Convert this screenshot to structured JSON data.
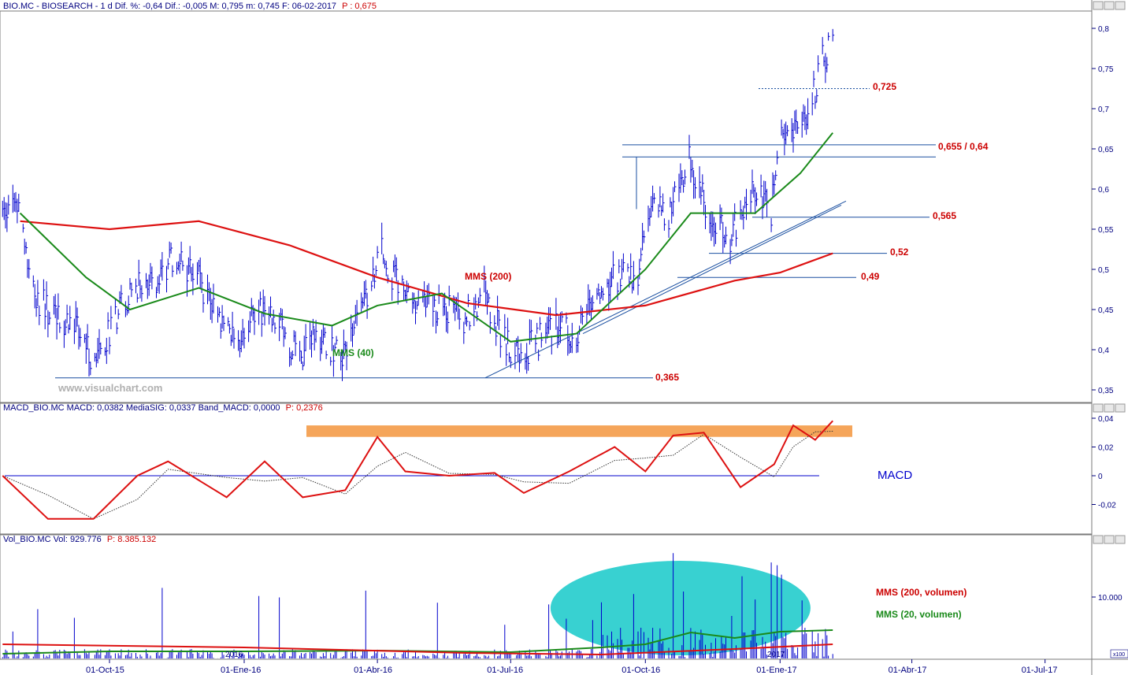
{
  "colors": {
    "price_bars": "#0000cc",
    "sma200": "#dd1111",
    "sma40": "#1a8a1a",
    "support_lines": "#1a4fa0",
    "macd_line": "#dd1111",
    "signal_line": "#333333",
    "macd_band": "#f5a55a",
    "volume_bars": "#0000cc",
    "volume_ellipse": "#22cccc",
    "labels_red": "#cc0000",
    "labels_green": "#1a8a1a",
    "axis_text": "#000080"
  },
  "header": {
    "price": {
      "prefix": "BIO.MC - BIOSEARCH - 1 d Dif. %: -0,64 Dif.: -0,005 M: 0,795 m: 0,745 F: 06-02-2017",
      "p_label": "P : 0,675"
    },
    "macd": {
      "prefix": "MACD_BIO.MC MACD: 0,0382 MediaSIG: 0,0337 Band_MACD: 0,0000",
      "p_label": "P: 0,2376"
    },
    "volume": {
      "prefix": "Vol_BIO.MC Vol: 929.776",
      "p_label": "P: 8.385.132"
    }
  },
  "watermark": "www.visualchart.com",
  "annotations": {
    "sma200": "MMS (200)",
    "sma40": "MMS (40)",
    "l_0725": "0,725",
    "l_0655": "0,655 / 0,64",
    "l_0565": "0,565",
    "l_052": "0,52",
    "l_049": "0,49",
    "l_0365": "0,365",
    "macd_title": "MACD",
    "vol200": "MMS (200, volumen)",
    "vol20": "MMS (20, volumen)",
    "year_2016": "2016",
    "year_2017": "2017",
    "x100": "x100"
  },
  "chart_data": [
    {
      "type": "line",
      "title": "BIO.MC - BIOSEARCH - 1 d",
      "ylim": [
        0.34,
        0.81
      ],
      "y_ticks": [
        "0,8",
        "0,75",
        "0,7",
        "0,65",
        "0,6",
        "0,55",
        "0,5",
        "0,45",
        "0,4",
        "0,35"
      ],
      "x_ticks": [
        "01-Oct-15",
        "01-Ene-16",
        "01-Abr-16",
        "01-Jul-16",
        "01-Oct-16",
        "01-Ene-17",
        "01-Abr-17",
        "01-Jul-17"
      ],
      "price_series": [
        {
          "date": "2015-07-20",
          "close": 0.58
        },
        {
          "date": "2015-07-31",
          "close": 0.58
        },
        {
          "date": "2015-08-10",
          "close": 0.47
        },
        {
          "date": "2015-08-24",
          "close": 0.44
        },
        {
          "date": "2015-09-07",
          "close": 0.43
        },
        {
          "date": "2015-09-21",
          "close": 0.38
        },
        {
          "date": "2015-10-05",
          "close": 0.44
        },
        {
          "date": "2015-10-19",
          "close": 0.48
        },
        {
          "date": "2015-11-02",
          "close": 0.49
        },
        {
          "date": "2015-11-16",
          "close": 0.52
        },
        {
          "date": "2015-11-30",
          "close": 0.49
        },
        {
          "date": "2015-12-14",
          "close": 0.44
        },
        {
          "date": "2015-12-28",
          "close": 0.41
        },
        {
          "date": "2016-01-11",
          "close": 0.45
        },
        {
          "date": "2016-01-25",
          "close": 0.43
        },
        {
          "date": "2016-02-08",
          "close": 0.39
        },
        {
          "date": "2016-02-22",
          "close": 0.42
        },
        {
          "date": "2016-03-07",
          "close": 0.39
        },
        {
          "date": "2016-03-21",
          "close": 0.45
        },
        {
          "date": "2016-04-04",
          "close": 0.52
        },
        {
          "date": "2016-04-18",
          "close": 0.47
        },
        {
          "date": "2016-05-02",
          "close": 0.45
        },
        {
          "date": "2016-05-16",
          "close": 0.45
        },
        {
          "date": "2016-05-30",
          "close": 0.44
        },
        {
          "date": "2016-06-13",
          "close": 0.47
        },
        {
          "date": "2016-06-27",
          "close": 0.41
        },
        {
          "date": "2016-07-04",
          "close": 0.39
        },
        {
          "date": "2016-07-18",
          "close": 0.41
        },
        {
          "date": "2016-08-01",
          "close": 0.43
        },
        {
          "date": "2016-08-15",
          "close": 0.42
        },
        {
          "date": "2016-08-29",
          "close": 0.47
        },
        {
          "date": "2016-09-12",
          "close": 0.49
        },
        {
          "date": "2016-09-26",
          "close": 0.5
        },
        {
          "date": "2016-10-03",
          "close": 0.58
        },
        {
          "date": "2016-10-17",
          "close": 0.57
        },
        {
          "date": "2016-10-31",
          "close": 0.64
        },
        {
          "date": "2016-11-14",
          "close": 0.57
        },
        {
          "date": "2016-11-28",
          "close": 0.54
        },
        {
          "date": "2016-12-12",
          "close": 0.6
        },
        {
          "date": "2016-12-26",
          "close": 0.57
        },
        {
          "date": "2017-01-02",
          "close": 0.68
        },
        {
          "date": "2017-01-16",
          "close": 0.67
        },
        {
          "date": "2017-01-30",
          "close": 0.76
        },
        {
          "date": "2017-02-06",
          "close": 0.79
        }
      ],
      "sma200_series": [
        {
          "date": "2015-08-01",
          "value": 0.56
        },
        {
          "date": "2015-10-01",
          "value": 0.55
        },
        {
          "date": "2015-12-01",
          "value": 0.56
        },
        {
          "date": "2016-02-01",
          "value": 0.53
        },
        {
          "date": "2016-04-01",
          "value": 0.49
        },
        {
          "date": "2016-06-01",
          "value": 0.458
        },
        {
          "date": "2016-08-01",
          "value": 0.443
        },
        {
          "date": "2016-10-01",
          "value": 0.455
        },
        {
          "date": "2016-12-01",
          "value": 0.486
        },
        {
          "date": "2017-01-01",
          "value": 0.496
        },
        {
          "date": "2017-02-06",
          "value": 0.52
        }
      ],
      "sma40_series": [
        {
          "date": "2015-08-01",
          "value": 0.57
        },
        {
          "date": "2015-09-15",
          "value": 0.49
        },
        {
          "date": "2015-10-15",
          "value": 0.45
        },
        {
          "date": "2015-12-01",
          "value": 0.477
        },
        {
          "date": "2016-01-15",
          "value": 0.445
        },
        {
          "date": "2016-03-01",
          "value": 0.43
        },
        {
          "date": "2016-04-01",
          "value": 0.455
        },
        {
          "date": "2016-05-15",
          "value": 0.47
        },
        {
          "date": "2016-07-01",
          "value": 0.41
        },
        {
          "date": "2016-08-15",
          "value": 0.42
        },
        {
          "date": "2016-10-01",
          "value": 0.5
        },
        {
          "date": "2016-11-01",
          "value": 0.57
        },
        {
          "date": "2016-12-15",
          "value": 0.57
        },
        {
          "date": "2017-01-15",
          "value": 0.62
        },
        {
          "date": "2017-02-06",
          "value": 0.67
        }
      ],
      "horizontal_levels": [
        {
          "label": "0,725",
          "value": 0.725,
          "style": "dotted"
        },
        {
          "label": "0,655 / 0,64",
          "values": [
            0.655,
            0.64
          ]
        },
        {
          "label": "0,565",
          "value": 0.565
        },
        {
          "label": "0,52",
          "value": 0.52
        },
        {
          "label": "0,49",
          "value": 0.49
        },
        {
          "label": "0,365",
          "value": 0.365
        }
      ]
    },
    {
      "type": "line",
      "title": "MACD",
      "ylim": [
        -0.04,
        0.05
      ],
      "y_ticks": [
        "0,04",
        "0,02",
        "0",
        "-0,02"
      ],
      "macd_series": [
        {
          "date": "2015-07-20",
          "value": 0.0
        },
        {
          "date": "2015-08-20",
          "value": -0.03
        },
        {
          "date": "2015-09-20",
          "value": -0.03
        },
        {
          "date": "2015-10-20",
          "value": 0.0
        },
        {
          "date": "2015-11-10",
          "value": 0.01
        },
        {
          "date": "2015-12-20",
          "value": -0.015
        },
        {
          "date": "2016-01-15",
          "value": 0.01
        },
        {
          "date": "2016-02-10",
          "value": -0.015
        },
        {
          "date": "2016-03-10",
          "value": -0.01
        },
        {
          "date": "2016-04-01",
          "value": 0.027
        },
        {
          "date": "2016-04-20",
          "value": 0.003
        },
        {
          "date": "2016-05-20",
          "value": 0.0
        },
        {
          "date": "2016-06-20",
          "value": 0.002
        },
        {
          "date": "2016-07-10",
          "value": -0.012
        },
        {
          "date": "2016-08-10",
          "value": 0.003
        },
        {
          "date": "2016-09-10",
          "value": 0.02
        },
        {
          "date": "2016-10-01",
          "value": 0.003
        },
        {
          "date": "2016-10-20",
          "value": 0.028
        },
        {
          "date": "2016-11-10",
          "value": 0.03
        },
        {
          "date": "2016-12-05",
          "value": -0.008
        },
        {
          "date": "2016-12-28",
          "value": 0.008
        },
        {
          "date": "2017-01-10",
          "value": 0.035
        },
        {
          "date": "2017-01-25",
          "value": 0.025
        },
        {
          "date": "2017-02-06",
          "value": 0.0382
        }
      ],
      "signal_value_last": 0.0337,
      "highlight_band": [
        0.027,
        0.035
      ]
    },
    {
      "type": "bar",
      "title": "Vol_BIO.MC",
      "y_ticks": [
        "10.000"
      ],
      "units": "x100",
      "last_volume": 929776,
      "notes": [
        "MMS (200, volumen)",
        "MMS (20, volumen)"
      ]
    }
  ]
}
